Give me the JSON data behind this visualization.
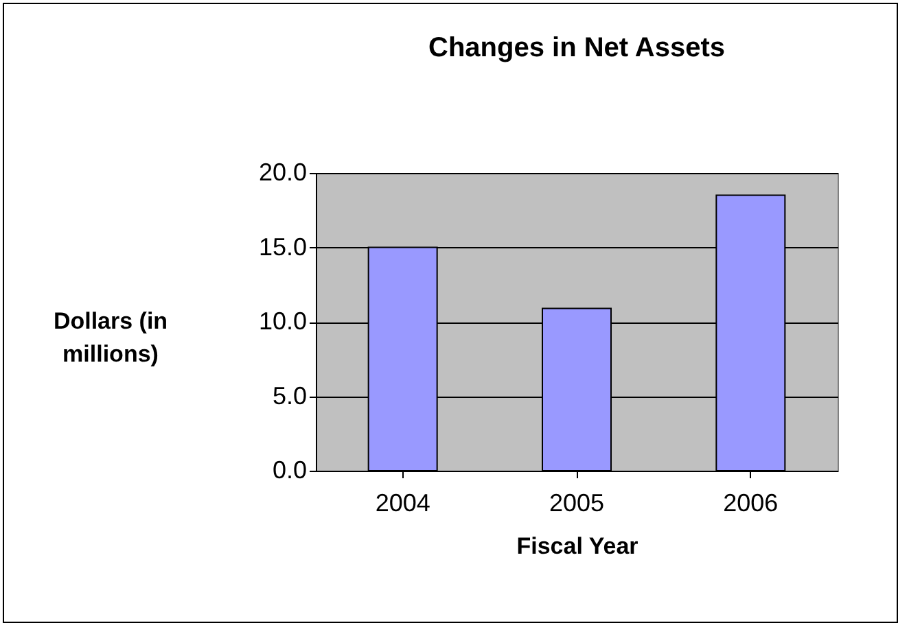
{
  "chart_data": {
    "type": "bar",
    "title": "Changes in Net Assets",
    "xlabel": "Fiscal Year",
    "ylabel": "Dollars (in millions)",
    "categories": [
      "2004",
      "2005",
      "2006"
    ],
    "values": [
      15.0,
      10.9,
      18.5
    ],
    "color": "#9999ff",
    "ylim": [
      0,
      20
    ],
    "yticks": [
      {
        "value": 0,
        "label": "0.0"
      },
      {
        "value": 5,
        "label": "5.0"
      },
      {
        "value": 10,
        "label": "10.0"
      },
      {
        "value": 15,
        "label": "15.0"
      },
      {
        "value": 20,
        "label": "20.0"
      }
    ],
    "grid": "y"
  }
}
